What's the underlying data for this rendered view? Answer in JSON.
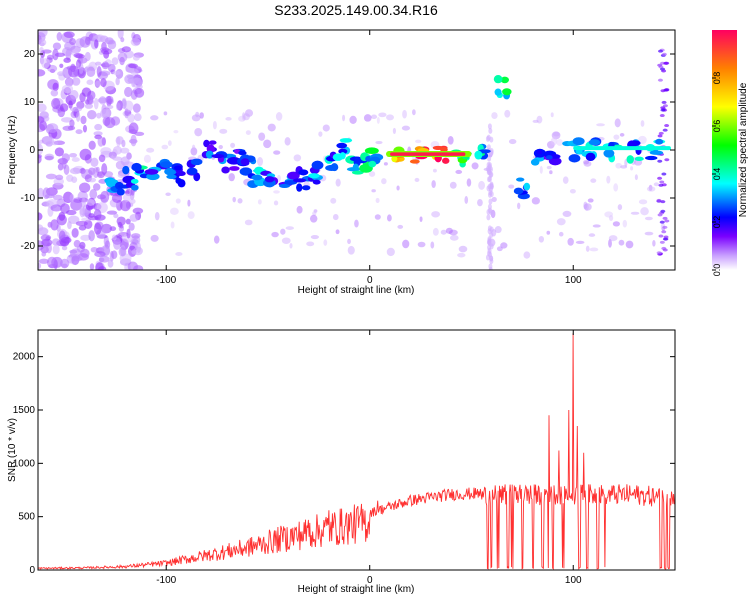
{
  "title": "S233.2025.149.00.34.R16",
  "chart_data": [
    {
      "type": "heatmap",
      "xlabel": "Height of straight line (km)",
      "ylabel": "Frequency (Hz)",
      "xlim": [
        -163,
        150
      ],
      "ylim": [
        -25,
        25
      ],
      "xticks": [
        -100,
        0,
        100
      ],
      "yticks": [
        -20,
        -10,
        0,
        10,
        20
      ],
      "xtick_labels": [
        "-100",
        "0",
        "100"
      ],
      "ytick_labels": [
        "-20",
        "-10",
        "0",
        "10",
        "20"
      ],
      "colorbar": {
        "label": "Normalized spectral amplitude",
        "range": [
          0,
          1
        ],
        "ticks": [
          "0.0",
          "0.2",
          "0.4",
          "0.6",
          "0.8"
        ],
        "colors": [
          "#ffffff",
          "#c9a0ff",
          "#7a00ff",
          "#0000ff",
          "#00ffff",
          "#00ff00",
          "#ffff00",
          "#ff8000",
          "#ff0040"
        ]
      },
      "ridge": [
        {
          "x": -125,
          "y": -7,
          "a": 0.3
        },
        {
          "x": -118,
          "y": -6,
          "a": 0.35
        },
        {
          "x": -112,
          "y": -5,
          "a": 0.4
        },
        {
          "x": -105,
          "y": -5,
          "a": 0.35
        },
        {
          "x": -98,
          "y": -4,
          "a": 0.3
        },
        {
          "x": -92,
          "y": -5,
          "a": 0.3
        },
        {
          "x": -85,
          "y": -4,
          "a": 0.25
        },
        {
          "x": -78,
          "y": 1,
          "a": 0.3
        },
        {
          "x": -72,
          "y": -3,
          "a": 0.3
        },
        {
          "x": -65,
          "y": -2,
          "a": 0.25
        },
        {
          "x": -60,
          "y": -3,
          "a": 0.3
        },
        {
          "x": -55,
          "y": -6,
          "a": 0.35
        },
        {
          "x": -48,
          "y": -5,
          "a": 0.3
        },
        {
          "x": -40,
          "y": -7,
          "a": 0.3
        },
        {
          "x": -33,
          "y": -6,
          "a": 0.35
        },
        {
          "x": -26,
          "y": -5,
          "a": 0.35
        },
        {
          "x": -20,
          "y": -2,
          "a": 0.35
        },
        {
          "x": -14,
          "y": 0,
          "a": 0.35
        },
        {
          "x": -8,
          "y": -3,
          "a": 0.4
        },
        {
          "x": -2,
          "y": -2,
          "a": 0.45
        },
        {
          "x": 4,
          "y": -1,
          "a": 0.5
        },
        {
          "x": 15,
          "y": -1,
          "a": 0.95
        },
        {
          "x": 25,
          "y": -1,
          "a": 0.95
        },
        {
          "x": 35,
          "y": -1,
          "a": 0.95
        },
        {
          "x": 45,
          "y": -1,
          "a": 0.7
        },
        {
          "x": 55,
          "y": -1,
          "a": 0.45
        },
        {
          "x": 65,
          "y": 13,
          "a": 0.45
        },
        {
          "x": 75,
          "y": -8,
          "a": 0.35
        },
        {
          "x": 82,
          "y": -2,
          "a": 0.3
        },
        {
          "x": 90,
          "y": -2,
          "a": 0.3
        },
        {
          "x": 100,
          "y": 0,
          "a": 0.4
        },
        {
          "x": 110,
          "y": 0,
          "a": 0.4
        },
        {
          "x": 120,
          "y": 0,
          "a": 0.4
        },
        {
          "x": 130,
          "y": 0,
          "a": 0.4
        },
        {
          "x": 140,
          "y": 0,
          "a": 0.4
        }
      ]
    },
    {
      "type": "line",
      "xlabel": "Height of straight line (km)",
      "ylabel": "SNR (10 * v/v)",
      "xlim": [
        -163,
        150
      ],
      "ylim": [
        0,
        2250
      ],
      "xticks": [
        -100,
        0,
        100
      ],
      "yticks": [
        0,
        500,
        1000,
        1500,
        2000
      ],
      "xtick_labels": [
        "-100",
        "0",
        "100"
      ],
      "ytick_labels": [
        "0",
        "500",
        "1000",
        "1500",
        "2000"
      ],
      "series": [
        {
          "color": "#ff3030",
          "envelope_x": [
            -163,
            -140,
            -120,
            -100,
            -80,
            -60,
            -40,
            -20,
            0,
            20,
            40,
            55,
            70,
            85,
            95,
            100,
            110,
            120,
            130,
            140,
            150
          ],
          "envelope_y": [
            20,
            25,
            40,
            80,
            170,
            260,
            380,
            480,
            560,
            680,
            740,
            750,
            760,
            760,
            770,
            760,
            760,
            760,
            760,
            740,
            700
          ],
          "spikes": [
            {
              "x": 98,
              "y": 1500
            },
            {
              "x": 100,
              "y": 2220
            },
            {
              "x": 102,
              "y": 1350
            },
            {
              "x": 88,
              "y": 1450
            },
            {
              "x": 93,
              "y": 1120
            },
            {
              "x": 105,
              "y": 1100
            },
            {
              "x": 4,
              "y": 650
            },
            {
              "x": -42,
              "y": 370
            },
            {
              "x": -30,
              "y": 470
            },
            {
              "x": -20,
              "y": 560
            }
          ],
          "drops_x": [
            58,
            60,
            63,
            68,
            70,
            75,
            80,
            85,
            88,
            90,
            95,
            98,
            103,
            107,
            112,
            116,
            143,
            145,
            147
          ]
        }
      ]
    }
  ]
}
